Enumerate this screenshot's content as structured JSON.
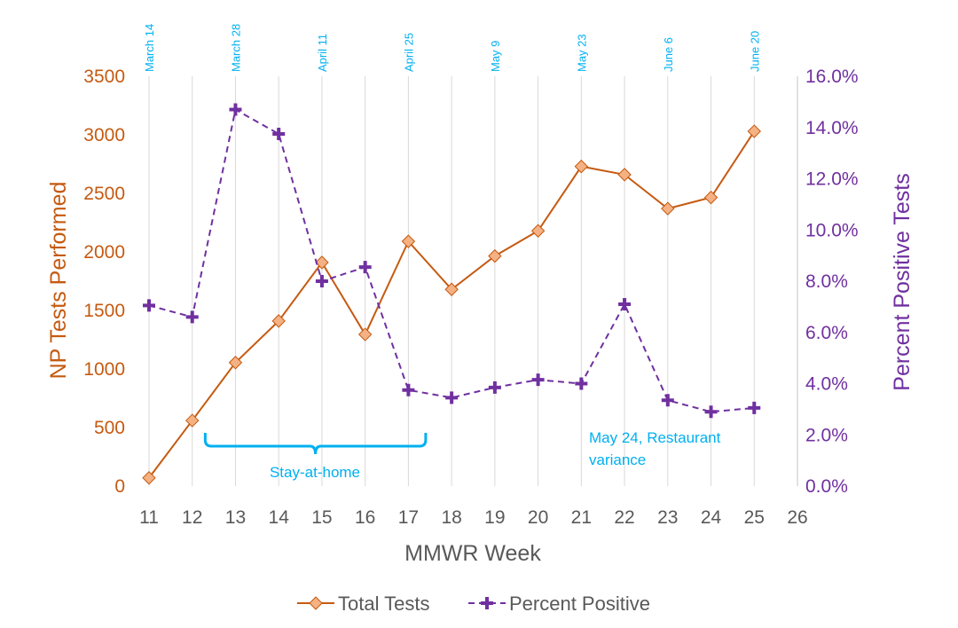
{
  "colors": {
    "tests": "#C55A11",
    "tests_marker_fill": "#F4B183",
    "percent": "#7030A0",
    "annotation": "#00B0F0",
    "grid": "#D9D9D9",
    "axis_text": "#595959"
  },
  "chart_data": {
    "type": "line",
    "xlabel": "MMWR Week",
    "ylabel_left": "NP Tests Performed",
    "ylabel_right": "Percent Positive Tests",
    "xlim": [
      11,
      26
    ],
    "x_ticks": [
      "11",
      "12",
      "13",
      "14",
      "15",
      "16",
      "17",
      "18",
      "19",
      "20",
      "21",
      "22",
      "23",
      "24",
      "25",
      "26"
    ],
    "ylim_left": [
      0,
      3500
    ],
    "y_ticks_left": [
      "0",
      "500",
      "1000",
      "1500",
      "2000",
      "2500",
      "3000",
      "3500"
    ],
    "ylim_right": [
      0,
      16
    ],
    "y_ticks_right": [
      "0.0%",
      "2.0%",
      "4.0%",
      "6.0%",
      "8.0%",
      "10.0%",
      "12.0%",
      "14.0%",
      "16.0%"
    ],
    "grid": "vertical",
    "legend_position": "bottom",
    "x": [
      11,
      12,
      13,
      14,
      15,
      16,
      17,
      18,
      19,
      20,
      21,
      22,
      23,
      24,
      25
    ],
    "series": [
      {
        "name": "Total Tests",
        "axis": "left",
        "style": "solid",
        "marker": "diamond",
        "values": [
          70,
          560,
          1055,
          1410,
          1910,
          1295,
          2090,
          1680,
          1965,
          2180,
          2730,
          2660,
          2370,
          2465,
          3030
        ]
      },
      {
        "name": "Percent Positive",
        "axis": "right",
        "style": "dashed",
        "marker": "plus",
        "values": [
          7.05,
          6.6,
          14.7,
          13.75,
          8.0,
          8.55,
          3.75,
          3.45,
          3.85,
          4.15,
          4.0,
          7.1,
          3.35,
          2.9,
          3.05
        ]
      }
    ],
    "date_labels": [
      {
        "week": 11,
        "label": "March 14"
      },
      {
        "week": 13,
        "label": "March 28"
      },
      {
        "week": 15,
        "label": "April 11"
      },
      {
        "week": 17,
        "label": "April 25"
      },
      {
        "week": 19,
        "label": "May 9"
      },
      {
        "week": 21,
        "label": "May 23"
      },
      {
        "week": 23,
        "label": "June 6"
      },
      {
        "week": 25,
        "label": "June 20"
      }
    ],
    "annotations": {
      "stay_at_home": {
        "label": "Stay-at-home",
        "start_week": 12.3,
        "end_week": 17.4
      },
      "restaurant_variance": {
        "line1": "May 24, Restaurant",
        "line2": "variance"
      }
    }
  }
}
